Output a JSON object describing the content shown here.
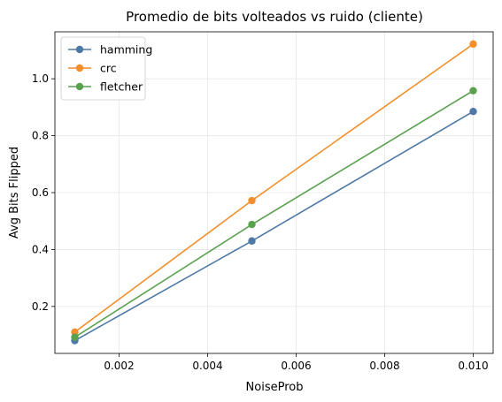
{
  "chart_data": {
    "type": "line",
    "title": "Promedio de bits volteados vs ruido (cliente)",
    "xlabel": "NoiseProb",
    "ylabel": "Avg Bits Flipped",
    "xlim": [
      0.00055,
      0.01045
    ],
    "ylim": [
      0.035,
      1.165
    ],
    "grid": true,
    "legend_position": "top-left",
    "x_ticks": [
      "0.002",
      "0.004",
      "0.006",
      "0.008",
      "0.010"
    ],
    "y_ticks": [
      "0.2",
      "0.4",
      "0.6",
      "0.8",
      "1.0"
    ],
    "x": [
      0.001,
      0.005,
      0.01
    ],
    "series": [
      {
        "name": "hamming",
        "color": "#4e79a7",
        "values": [
          0.08,
          0.43,
          0.885
        ]
      },
      {
        "name": "crc",
        "color": "#f28e2b",
        "values": [
          0.11,
          0.572,
          1.122
        ]
      },
      {
        "name": "fletcher",
        "color": "#59a14f",
        "values": [
          0.092,
          0.488,
          0.958
        ]
      }
    ]
  }
}
